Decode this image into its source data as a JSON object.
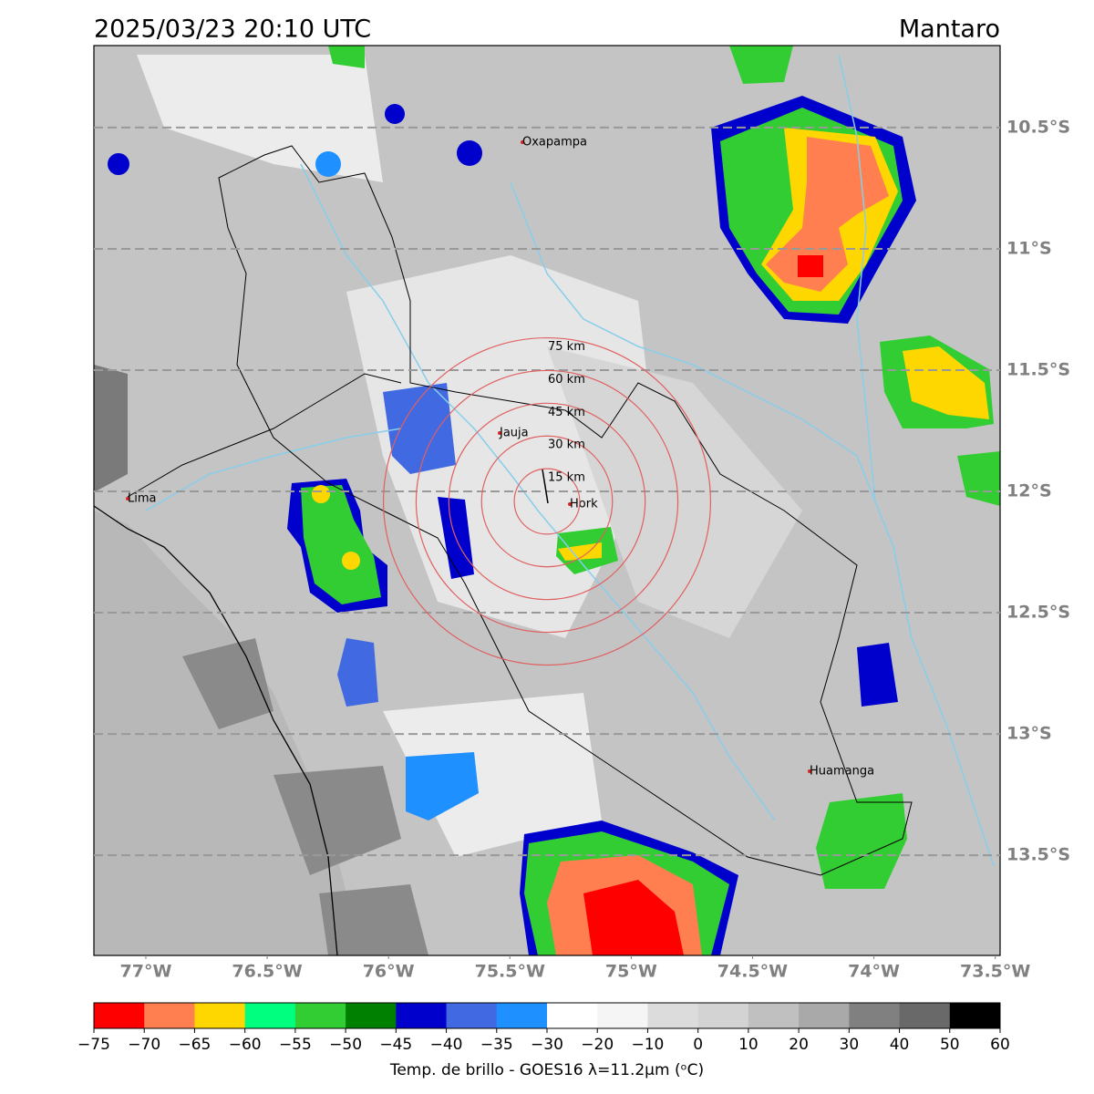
{
  "title": "2025/03/23 20:10 UTC",
  "region": "Mantaro",
  "map": {
    "xlim": [
      -77.214,
      -73.48
    ],
    "ylim": [
      -13.913,
      -10.162
    ],
    "xticks": [
      {
        "value": -77,
        "label": "77°W"
      },
      {
        "value": -76.5,
        "label": "76.5°W"
      },
      {
        "value": -76,
        "label": "76°W"
      },
      {
        "value": -75.5,
        "label": "75.5°W"
      },
      {
        "value": -75,
        "label": "75°W"
      },
      {
        "value": -74.5,
        "label": "74.5°W"
      },
      {
        "value": -74,
        "label": "74°W"
      },
      {
        "value": -73.5,
        "label": "73.5°W"
      }
    ],
    "yticks": [
      {
        "value": -10.5,
        "label": "10.5°S"
      },
      {
        "value": -11,
        "label": "11°S"
      },
      {
        "value": -11.5,
        "label": "11.5°S"
      },
      {
        "value": -12,
        "label": "12°S"
      },
      {
        "value": -12.5,
        "label": "12.5°S"
      },
      {
        "value": -13,
        "label": "13°S"
      },
      {
        "value": -13.5,
        "label": "13.5°S"
      }
    ],
    "places": [
      "Oxapampa",
      "Jauja",
      "Lima",
      "Hork",
      "Huamanga"
    ],
    "rings": [
      {
        "value": 15,
        "label": "15 km"
      },
      {
        "value": 30,
        "label": "30 km"
      },
      {
        "value": 45,
        "label": "45 km"
      },
      {
        "value": 60,
        "label": "60 km"
      },
      {
        "value": 75,
        "label": "75 km"
      }
    ]
  },
  "colorbar": {
    "label": "Temp. de brillo - GOES16 λ=11.2μm (ᵒC)",
    "ticks": [
      {
        "value": -75,
        "label": "−75"
      },
      {
        "value": -70,
        "label": "−70"
      },
      {
        "value": -65,
        "label": "−65"
      },
      {
        "value": -60,
        "label": "−60"
      },
      {
        "value": -55,
        "label": "−55"
      },
      {
        "value": -50,
        "label": "−50"
      },
      {
        "value": -45,
        "label": "−45"
      },
      {
        "value": -40,
        "label": "−40"
      },
      {
        "value": -35,
        "label": "−35"
      },
      {
        "value": -30,
        "label": "−30"
      },
      {
        "value": -20,
        "label": "−20"
      },
      {
        "value": -10,
        "label": "−10"
      },
      0,
      10,
      20,
      30,
      40,
      50,
      60
    ],
    "colors": [
      "#ff0000",
      "#ff7f50",
      "#ffd700",
      "#00ff7f",
      "#32cd32",
      "#008000",
      "#0000cd",
      "#4169e1",
      "#1e90ff",
      "#ffffff",
      "#f5f5f5",
      "#dcdcdc",
      "#d3d3d3",
      "#c0c0c0",
      "#a9a9a9",
      "#808080",
      "#696969",
      "#000000"
    ]
  }
}
